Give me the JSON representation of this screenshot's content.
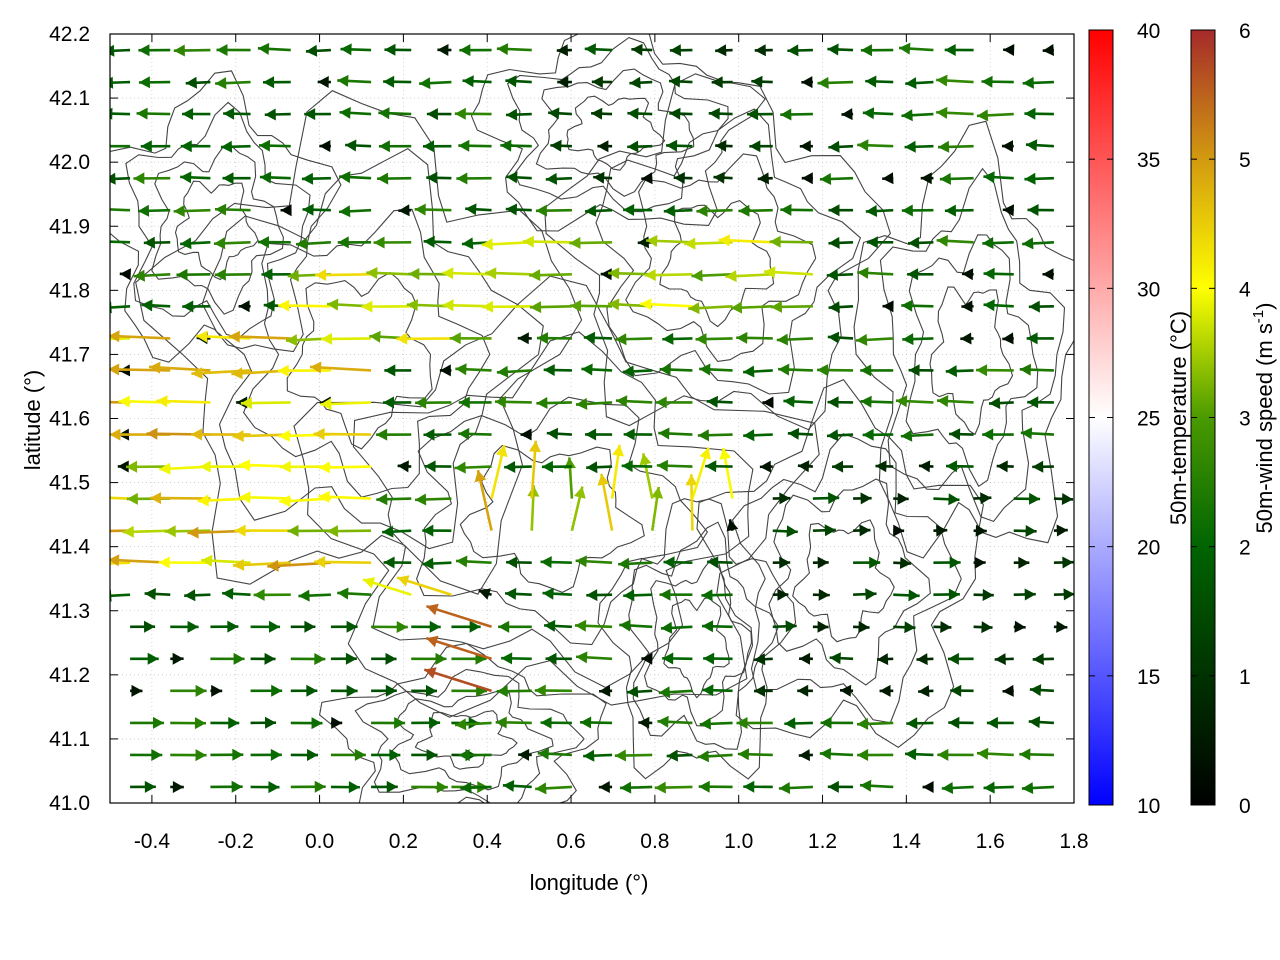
{
  "chart_data": {
    "type": "vector-field",
    "title": "",
    "xlabel": "longitude (°)",
    "ylabel": "latitude (°)",
    "xlim": [
      -0.5,
      1.8
    ],
    "ylim": [
      41.0,
      42.2
    ],
    "xticks": [
      "-0.4",
      "-0.2",
      "0.0",
      "0.2",
      "0.4",
      "0.6",
      "0.8",
      "1.0",
      "1.2",
      "1.4",
      "1.6",
      "1.8"
    ],
    "yticks": [
      "41.0",
      "41.1",
      "41.2",
      "41.3",
      "41.4",
      "41.5",
      "41.6",
      "41.7",
      "41.8",
      "41.9",
      "42.0",
      "42.1",
      "42.2"
    ],
    "grid": true,
    "contours": "terrain elevation isolines (dark gray)",
    "temperature_colorbar": {
      "label": "50m-temperature (°C)",
      "range": [
        10,
        40
      ],
      "ticks": [
        "10",
        "15",
        "20",
        "25",
        "30",
        "35",
        "40"
      ],
      "colors": [
        "#0000ff",
        "#ffffff",
        "#ff0000"
      ]
    },
    "wind_colorbar": {
      "label_main": "50m-wind speed (m s",
      "label_exp": "-1",
      "label_close": ")",
      "range": [
        0,
        6
      ],
      "ticks": [
        "0",
        "1",
        "2",
        "3",
        "4",
        "5",
        "6"
      ],
      "colors": [
        "#000000",
        "#006400",
        "#ffff00",
        "#a52a2a"
      ]
    },
    "wind_field_summary": {
      "dominant_direction": "westward (east wind)",
      "exceptions": "eastward flow in south-west region (lon -0.5 to 0.4, lat 41.0-41.3)",
      "max_speed_region": "west edge near lat 41.5-41.6 and around lon 0.2-0.4, lat 41.2-41.3"
    }
  }
}
